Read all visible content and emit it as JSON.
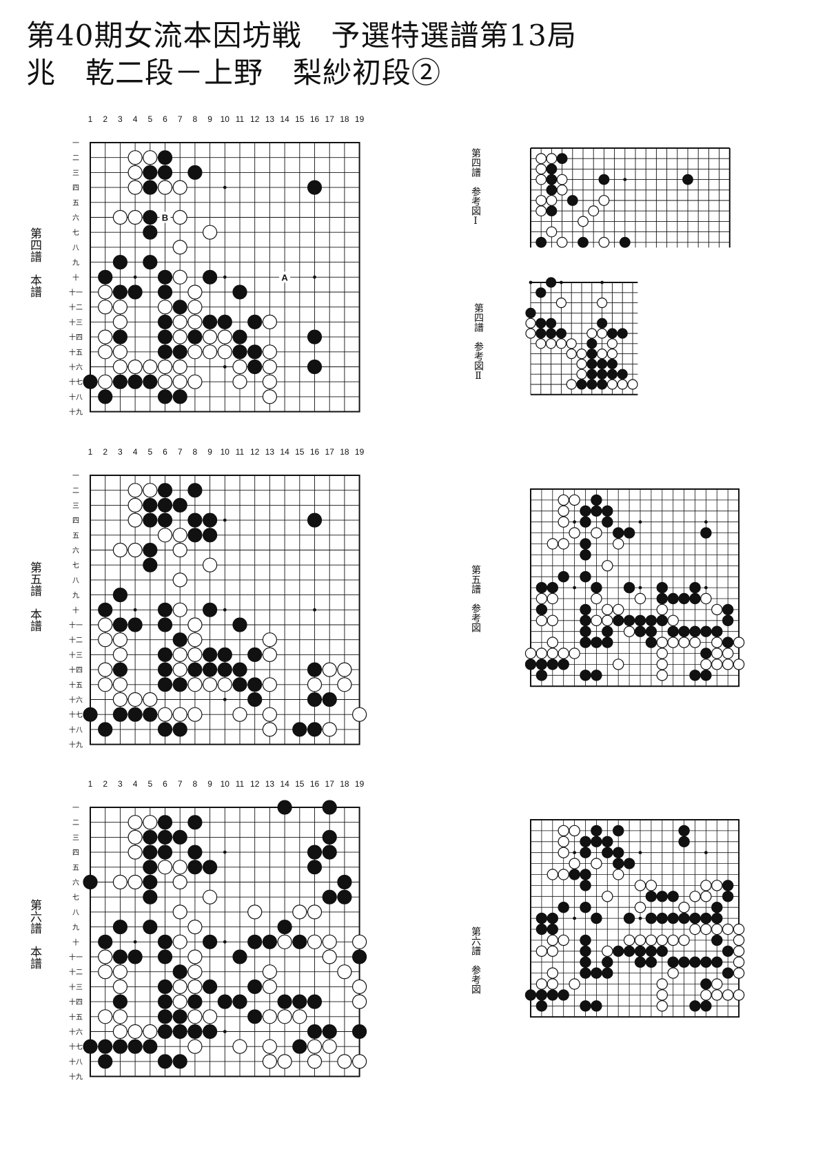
{
  "title": {
    "line1": "第40期女流本因坊戦　予選特選譜第13局",
    "line2": "兆　乾二段－上野　梨紗初段②"
  },
  "column_labels": [
    "1",
    "2",
    "3",
    "4",
    "5",
    "6",
    "7",
    "8",
    "9",
    "10",
    "11",
    "12",
    "13",
    "14",
    "15",
    "16",
    "17",
    "18",
    "19"
  ],
  "row_labels": [
    "一",
    "二",
    "三",
    "四",
    "五",
    "六",
    "七",
    "八",
    "九",
    "十",
    "十一",
    "十二",
    "十三",
    "十四",
    "十五",
    "十六",
    "十七",
    "十八",
    "十九"
  ],
  "sections": [
    {
      "label": "第四譜　本譜",
      "ref_labels": [
        "第四譜　参考図Ⅰ",
        "第四譜　参考図Ⅱ"
      ],
      "markers": [
        {
          "text": "A"
        },
        {
          "text": "B"
        }
      ]
    },
    {
      "label": "第五譜　本譜",
      "ref_labels": [
        "第五譜　参考図"
      ]
    },
    {
      "label": "第六譜　本譜",
      "ref_labels": [
        "第六譜　参考図"
      ]
    }
  ],
  "colors": {
    "ink": "#111111",
    "paper": "#ffffff"
  }
}
